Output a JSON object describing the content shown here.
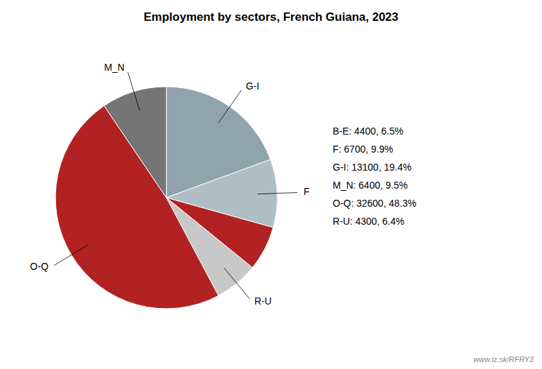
{
  "chart_data": {
    "type": "pie",
    "title": "Employment by sectors, French Guiana, 2023",
    "categories": [
      "G-I",
      "F",
      null,
      "R-U",
      "O-Q",
      "M_N"
    ],
    "values": [
      13100,
      6700,
      4400,
      4300,
      32600,
      6400
    ],
    "colors": [
      "#90a4ae",
      "#b0bec5",
      "#b22222",
      "#c8c8c8",
      "#b22222",
      "#757575"
    ],
    "annotations": [
      "B-E: 4400, 6.5%",
      "F: 6700, 9.9%",
      "G-I: 13100, 19.4%",
      "M_N: 6400, 9.5%",
      "O-Q: 32600, 48.3%",
      "R-U: 4300, 6.4%",
      "www.iz.sk/RFRY3"
    ]
  }
}
